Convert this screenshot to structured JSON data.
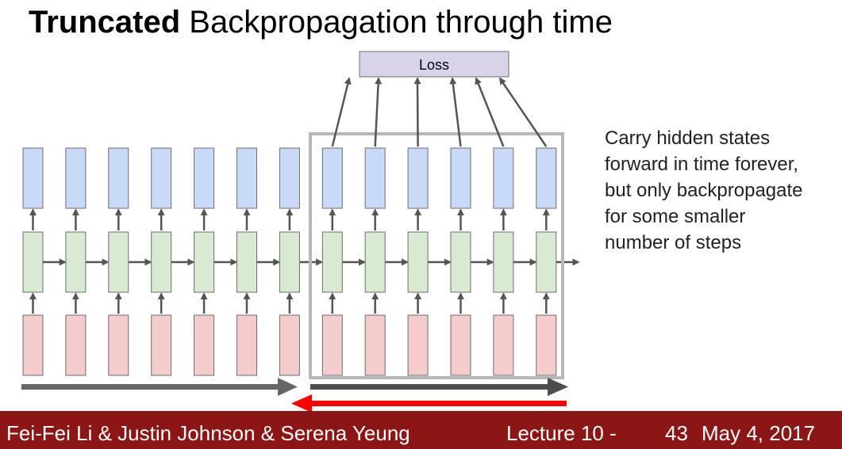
{
  "slide": {
    "title_bold": "Truncated",
    "title_rest": " Backpropagation through time",
    "description_lines": [
      "Carry hidden states",
      "forward in time forever,",
      "but only backpropagate",
      "for some smaller",
      "number of steps"
    ]
  },
  "diagram": {
    "loss_label": "Loss",
    "num_timesteps": 13,
    "truncated_window_start": 7,
    "colors": {
      "output": "#c9d9f8",
      "hidden": "#d9ead3",
      "input": "#f4cccc",
      "box_stroke": "#6d6d6d",
      "arrow": "#555555",
      "window": "#b7b7b7",
      "backprop": "#ff0000",
      "loss": "#d9d2e9"
    }
  },
  "footer": {
    "authors": "Fei-Fei Li & Justin Johnson & Serena Yeung",
    "lecture": "Lecture 10 -",
    "page": "43",
    "date": "May 4, 2017",
    "background": "#8c1515"
  }
}
